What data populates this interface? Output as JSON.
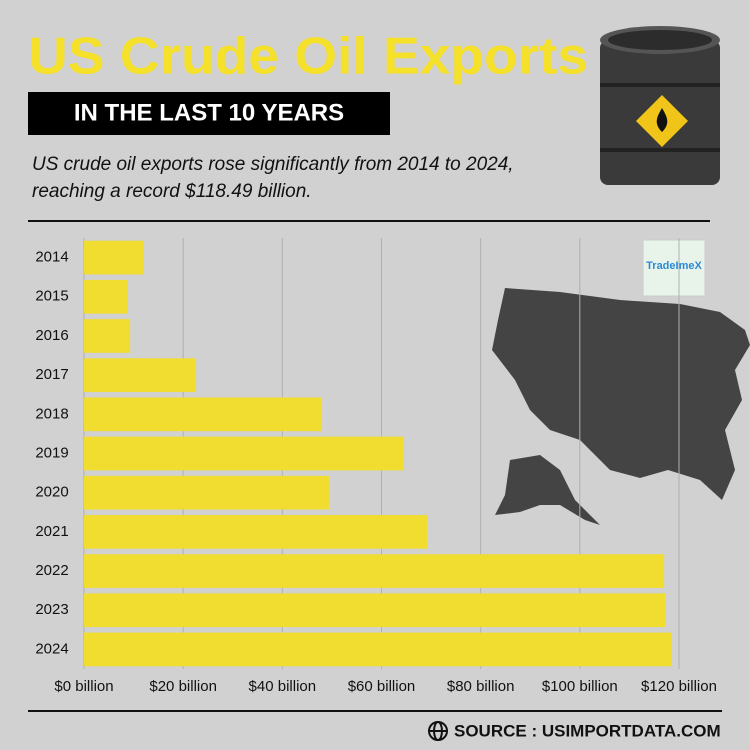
{
  "header": {
    "title": "US Crude Oil Exports",
    "badge": "IN THE LAST 10 YEARS",
    "description": [
      "US crude oil exports rose significantly from 2014 to 2024,",
      "reaching a record $118.49 billion."
    ]
  },
  "logo": "TradeImeX",
  "source": "SOURCE : USIMPORTDATA.COM",
  "chart_data": {
    "type": "bar",
    "orientation": "horizontal",
    "categories": [
      "2014",
      "2015",
      "2016",
      "2017",
      "2018",
      "2019",
      "2020",
      "2021",
      "2022",
      "2023",
      "2024"
    ],
    "values": [
      12.1,
      8.7,
      9.3,
      22.6,
      48,
      64.5,
      49.4,
      69.2,
      117,
      117.2,
      118.49
    ],
    "color": "#f0dd2f",
    "xlim": [
      0,
      120
    ],
    "xticks": [
      {
        "value": 0,
        "label": "$0 billion"
      },
      {
        "value": 20,
        "label": "$20 billion"
      },
      {
        "value": 40,
        "label": "$40 billion"
      },
      {
        "value": 60,
        "label": "$60 billion"
      },
      {
        "value": 80,
        "label": "$80 billion"
      },
      {
        "value": 100,
        "label": "$100 billion"
      },
      {
        "value": 120,
        "label": "$120 billion"
      }
    ],
    "grid": true
  }
}
